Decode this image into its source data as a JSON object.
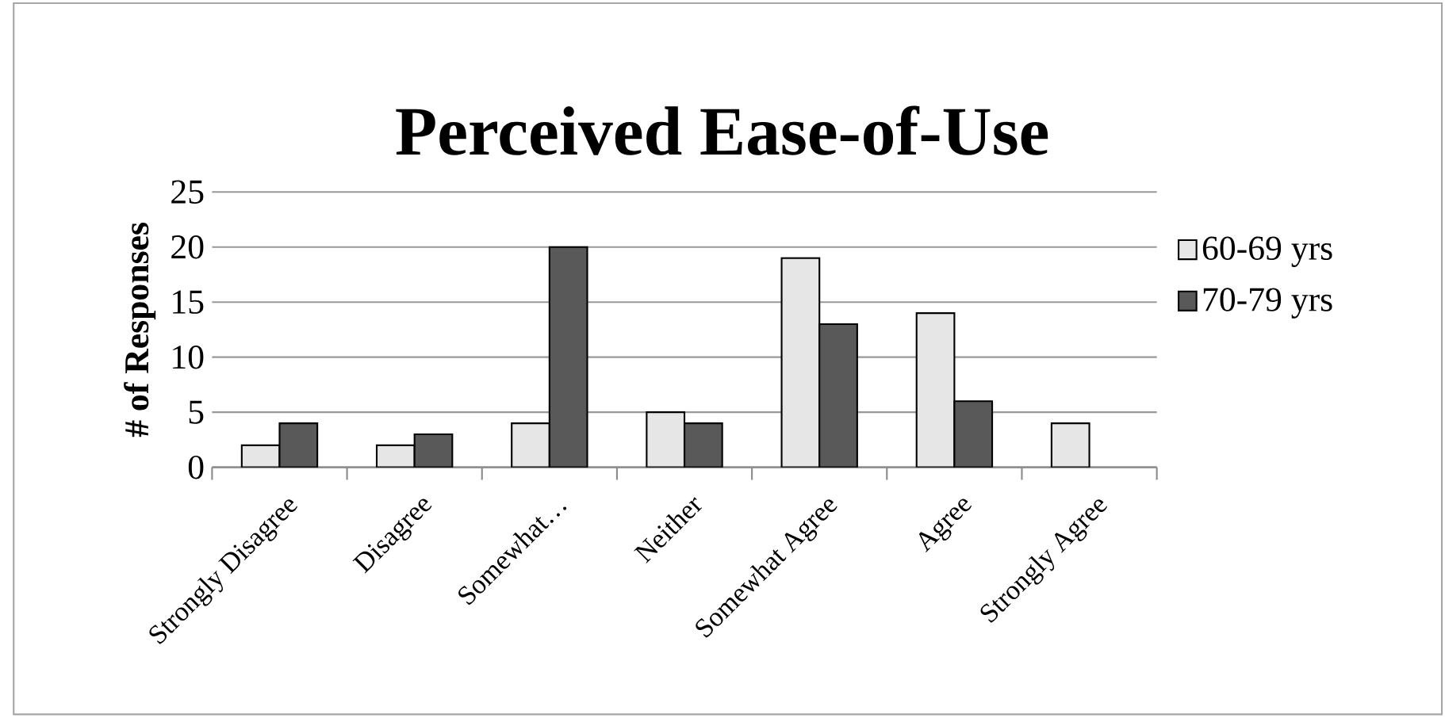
{
  "chart_data": {
    "type": "bar",
    "title": "Perceived Ease-of-Use",
    "ylabel": "# of Responses",
    "categories": [
      "Strongly Disagree",
      "Disagree",
      "Somewhat…",
      "Neither",
      "Somewhat Agree",
      "Agree",
      "Strongly Agree"
    ],
    "series": [
      {
        "name": "60-69 yrs",
        "color": "#e6e6e6",
        "values": [
          2,
          2,
          4,
          5,
          19,
          14,
          4
        ]
      },
      {
        "name": "70-79 yrs",
        "color": "#595959",
        "values": [
          4,
          3,
          20,
          4,
          13,
          6,
          null
        ]
      }
    ],
    "ylim": [
      0,
      25
    ],
    "yticks": [
      0,
      5,
      10,
      15,
      20,
      25
    ],
    "grid": "y",
    "legend": "right"
  }
}
